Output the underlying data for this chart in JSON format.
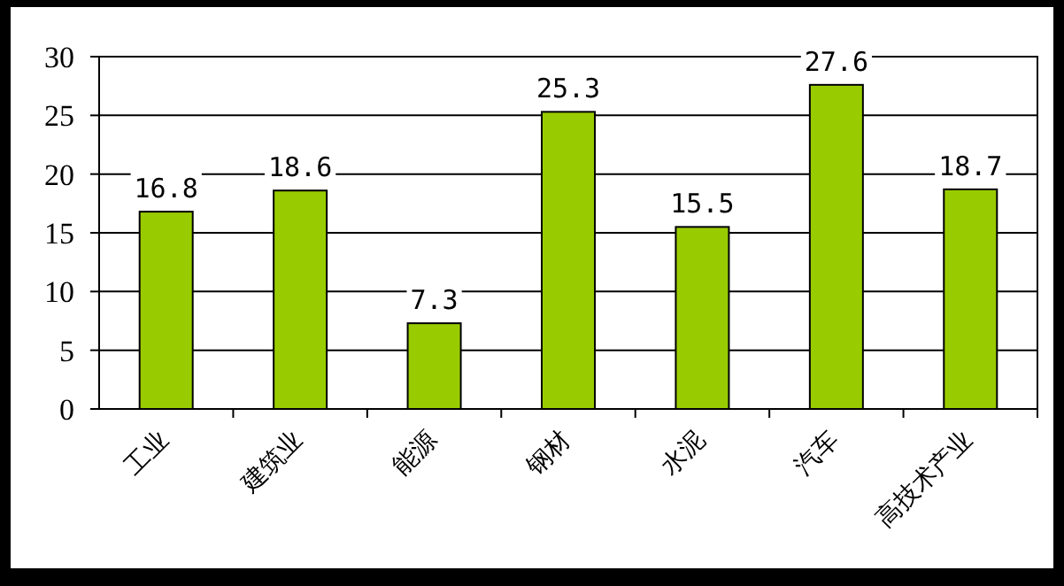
{
  "chart_data": {
    "type": "bar",
    "categories": [
      "工业",
      "建筑业",
      "能源",
      "钢材",
      "水泥",
      "汽车",
      "高技术产业"
    ],
    "values": [
      16.8,
      18.6,
      7.3,
      25.3,
      15.5,
      27.6,
      18.7
    ],
    "color": "#99cc00",
    "ylim": [
      0,
      30
    ],
    "yticks": [
      0,
      5,
      10,
      15,
      20,
      25,
      30
    ],
    "grid": "y",
    "data_labels": true
  }
}
